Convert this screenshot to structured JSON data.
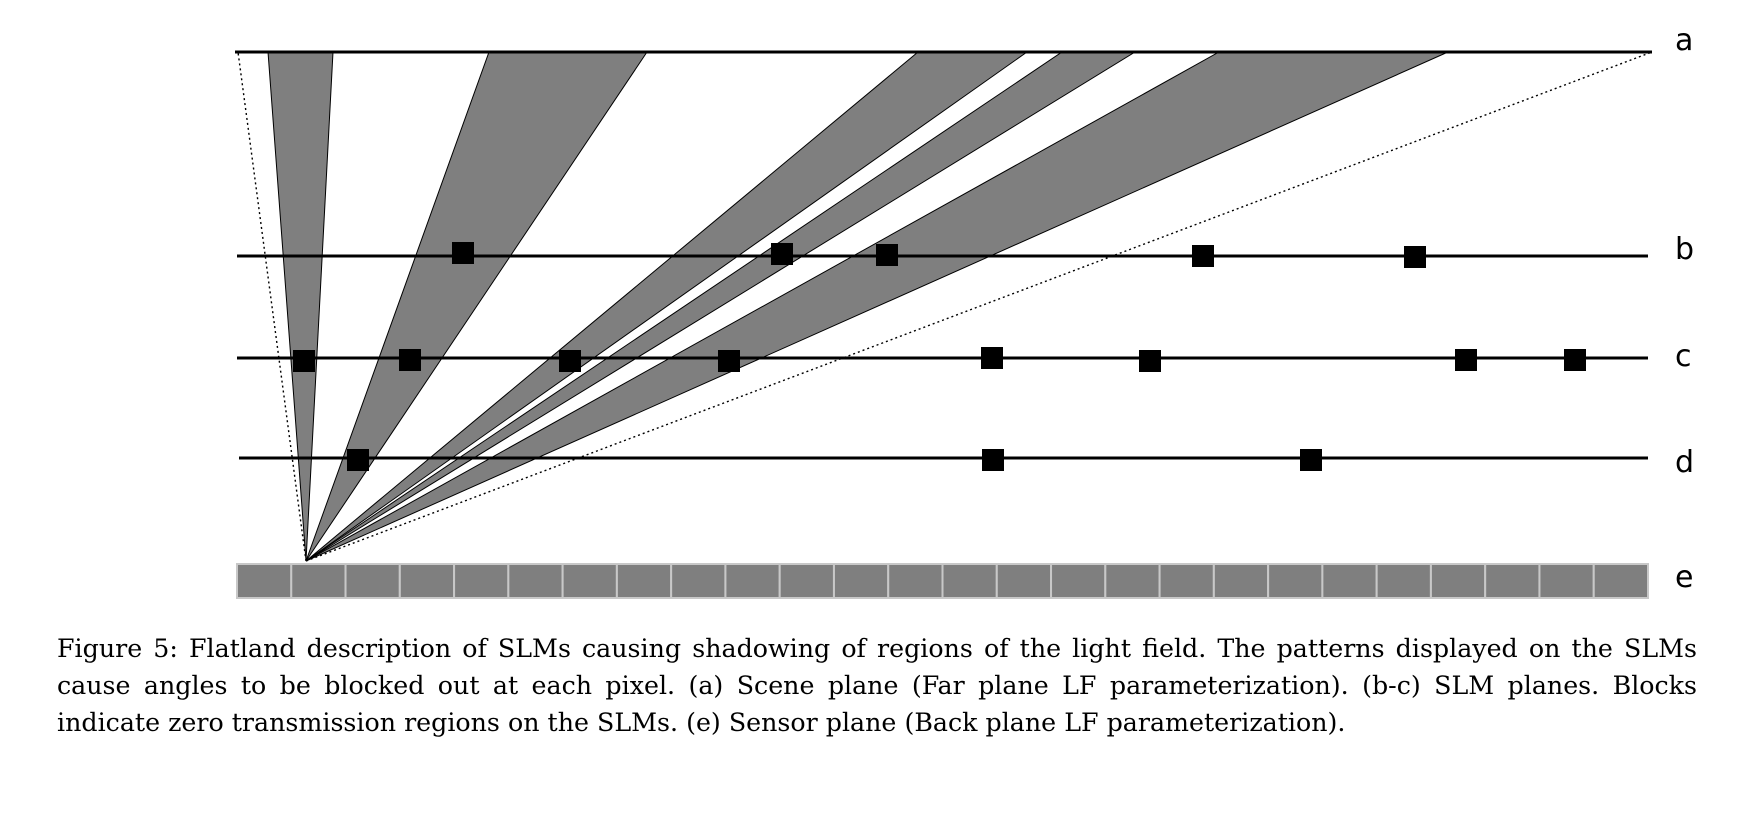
{
  "figure": {
    "plane_labels": {
      "a": "a",
      "b": "b",
      "c": "c",
      "d": "d",
      "e": "e"
    },
    "sensor_pixel_count": 26,
    "colors": {
      "shadow": "#7f7f7f",
      "block": "#000000",
      "line": "#000000",
      "sensor": "#7f7f7f",
      "sensor_border": "#c8c8c8"
    }
  },
  "caption": "Figure 5: Flatland description of SLMs causing shadowing of regions of the light field. The patterns displayed on the SLMs cause angles to be blocked out at each pixel. (a) Scene plane (Far plane LF parameterization). (b-c) SLM planes. Blocks indicate zero transmission regions on the SLMs. (e) Sensor plane (Back plane LF parameterization)."
}
